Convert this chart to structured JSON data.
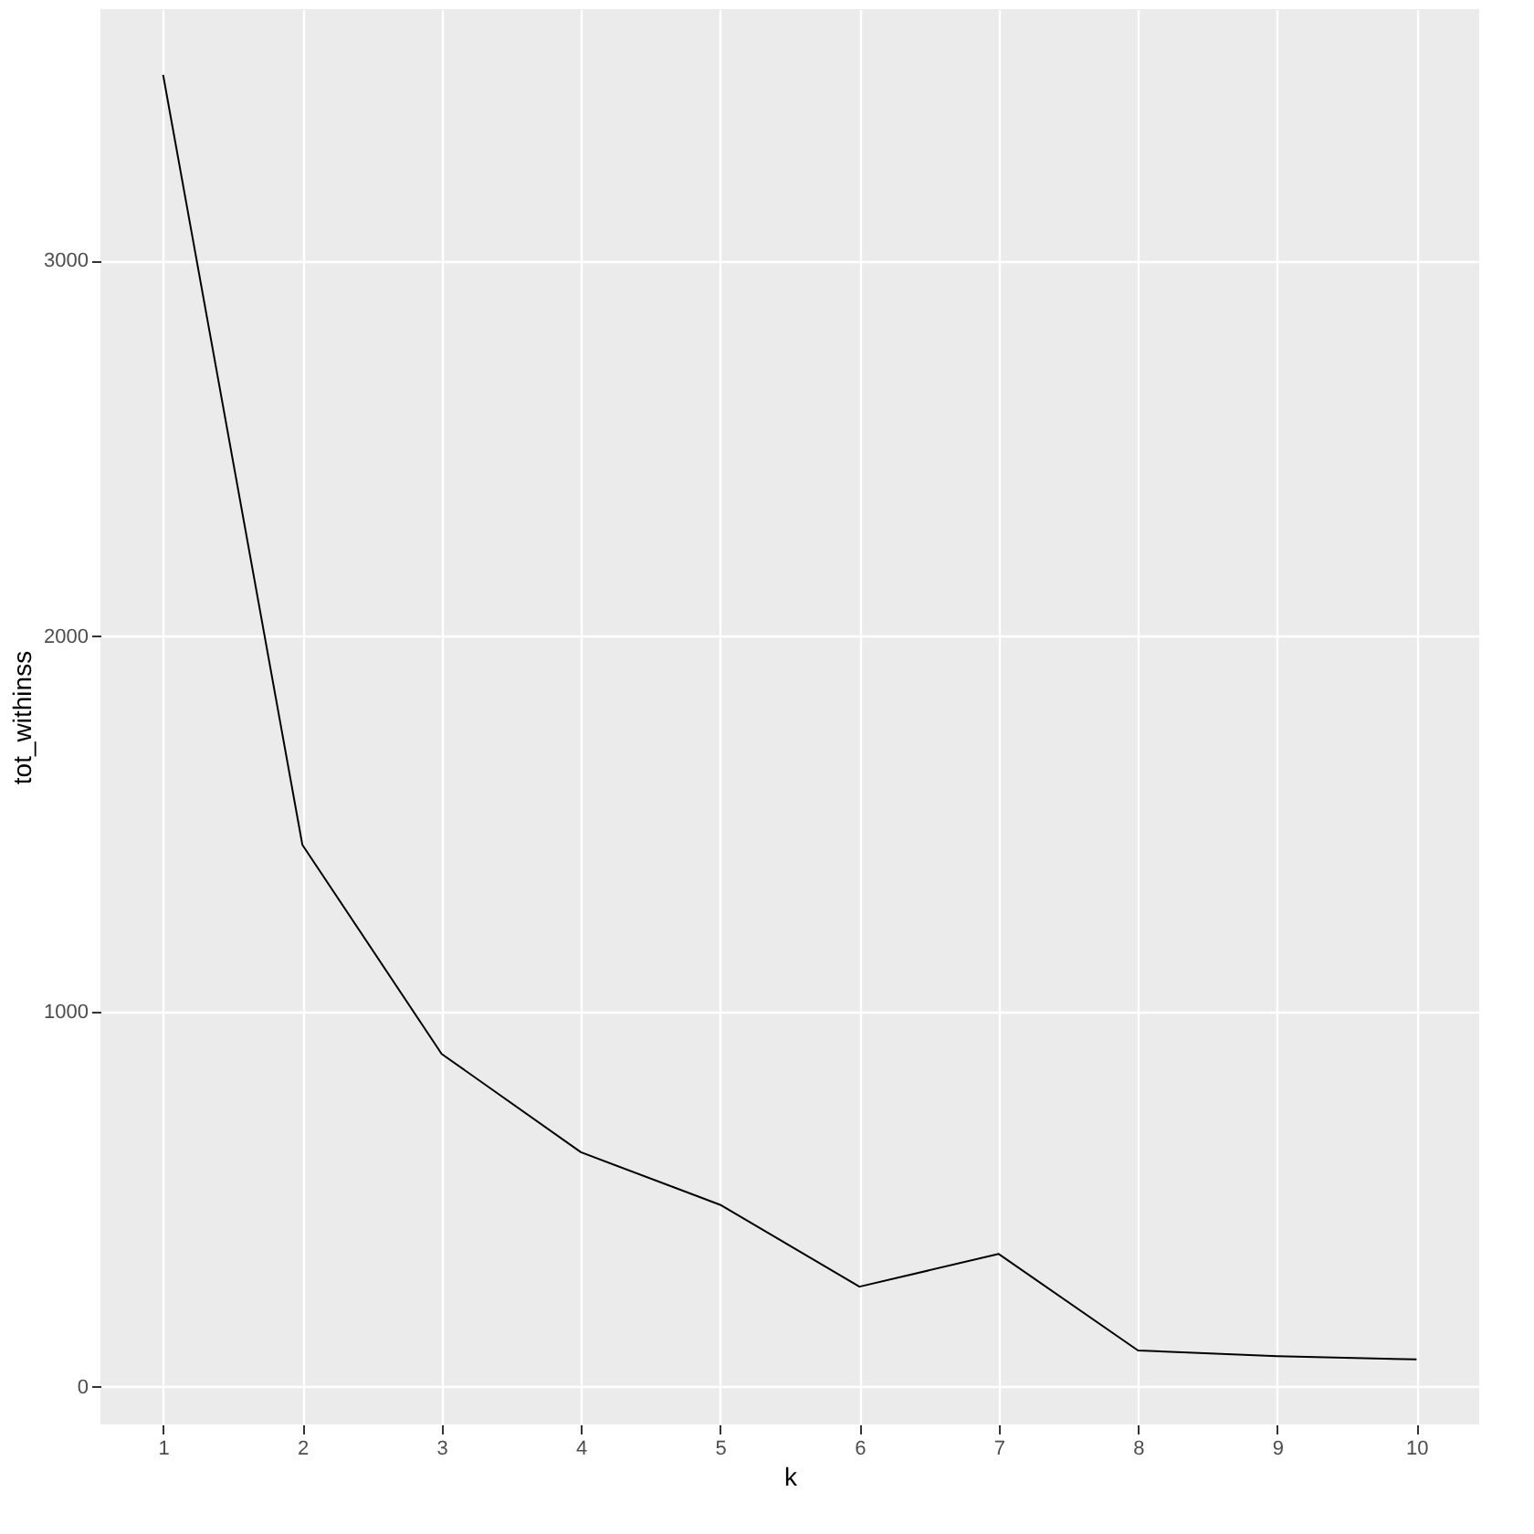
{
  "chart_data": {
    "type": "line",
    "xlabel": "k",
    "ylabel": "tot_withinss",
    "x": [
      1,
      2,
      3,
      4,
      5,
      6,
      7,
      8,
      9,
      10
    ],
    "series": [
      {
        "color": "#000000",
        "values": [
          3495,
          1444,
          887,
          625,
          485,
          267,
          354,
          97,
          82,
          73
        ]
      }
    ],
    "xlim": [
      0.55,
      10.45
    ],
    "xticks": [
      1,
      2,
      3,
      4,
      5,
      6,
      7,
      8,
      9,
      10
    ],
    "ylim": [
      -100,
      3670
    ],
    "yticks": [
      0,
      1000,
      2000,
      3000
    ],
    "grid": true,
    "marker": "none",
    "line_style": "solid"
  }
}
